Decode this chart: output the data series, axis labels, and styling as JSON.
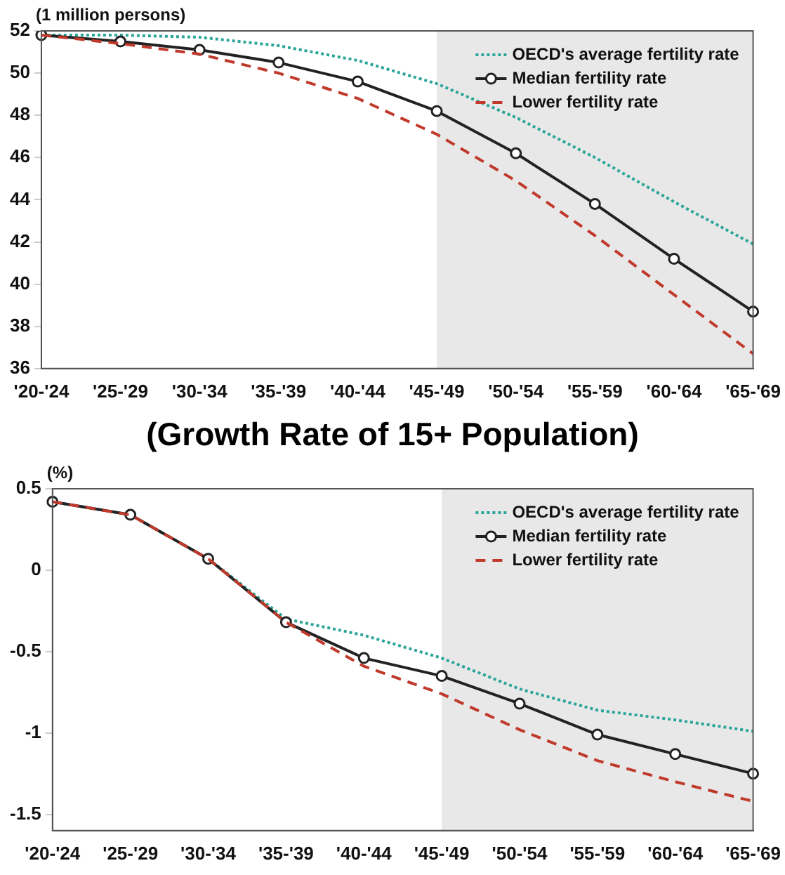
{
  "chart_data": [
    {
      "type": "line",
      "ylabel": "(1 million persons)",
      "categories": [
        "'20-'24",
        "'25-'29",
        "'30-'34",
        "'35-'39",
        "'40-'44",
        "'45-'49",
        "'50-'54",
        "'55-'59",
        "'60-'64",
        "'65-'69"
      ],
      "series": [
        {
          "name": "OECD's average fertility rate",
          "color": "#2aa59a",
          "line_style": "dotted",
          "marker": "none",
          "values": [
            51.8,
            51.8,
            51.7,
            51.3,
            50.6,
            49.5,
            47.9,
            46.0,
            43.9,
            41.9
          ]
        },
        {
          "name": "Median fertility rate",
          "color": "#222222",
          "line_style": "solid",
          "marker": "circle",
          "values": [
            51.8,
            51.5,
            51.1,
            50.5,
            49.6,
            48.2,
            46.2,
            43.8,
            41.2,
            38.7
          ]
        },
        {
          "name": "Lower fertility rate",
          "color": "#c0392b",
          "line_style": "dashed",
          "marker": "none",
          "values": [
            51.8,
            51.4,
            50.9,
            50.0,
            48.8,
            47.1,
            44.9,
            42.3,
            39.5,
            36.7
          ]
        }
      ],
      "ylim": [
        36,
        52
      ],
      "yticks": [
        36,
        38,
        40,
        42,
        44,
        46,
        48,
        50,
        52
      ],
      "grid": false,
      "legend": "top right",
      "bands": [
        {
          "axis": "x",
          "from": "'45-'49",
          "to": "'65-'69",
          "color": "#e8e8e8"
        }
      ]
    },
    {
      "type": "line",
      "title": "(Growth Rate of 15+ Population)",
      "ylabel": "(%)",
      "categories": [
        "'20-'24",
        "'25-'29",
        "'30-'34",
        "'35-'39",
        "'40-'44",
        "'45-'49",
        "'50-'54",
        "'55-'59",
        "'60-'64",
        "'65-'69"
      ],
      "series": [
        {
          "name": "OECD's average fertility rate",
          "color": "#2aa59a",
          "line_style": "dotted",
          "marker": "none",
          "values": [
            0.42,
            0.34,
            0.07,
            -0.3,
            -0.4,
            -0.54,
            -0.73,
            -0.86,
            -0.92,
            -0.99
          ]
        },
        {
          "name": "Median fertility rate",
          "color": "#222222",
          "line_style": "solid",
          "marker": "circle",
          "values": [
            0.42,
            0.34,
            0.07,
            -0.32,
            -0.54,
            -0.65,
            -0.82,
            -1.01,
            -1.13,
            -1.25
          ]
        },
        {
          "name": "Lower fertility rate",
          "color": "#c0392b",
          "line_style": "dashed",
          "marker": "none",
          "values": [
            0.42,
            0.34,
            0.07,
            -0.32,
            -0.59,
            -0.76,
            -0.98,
            -1.17,
            -1.3,
            -1.42
          ]
        }
      ],
      "ylim": [
        -1.6,
        0.5
      ],
      "yticks": [
        -1.5,
        -1,
        -0.5,
        0,
        0.5
      ],
      "grid": false,
      "legend": "top right",
      "bands": [
        {
          "axis": "x",
          "from": "'45-'49",
          "to": "'65-'69",
          "color": "#e8e8e8"
        }
      ]
    }
  ]
}
